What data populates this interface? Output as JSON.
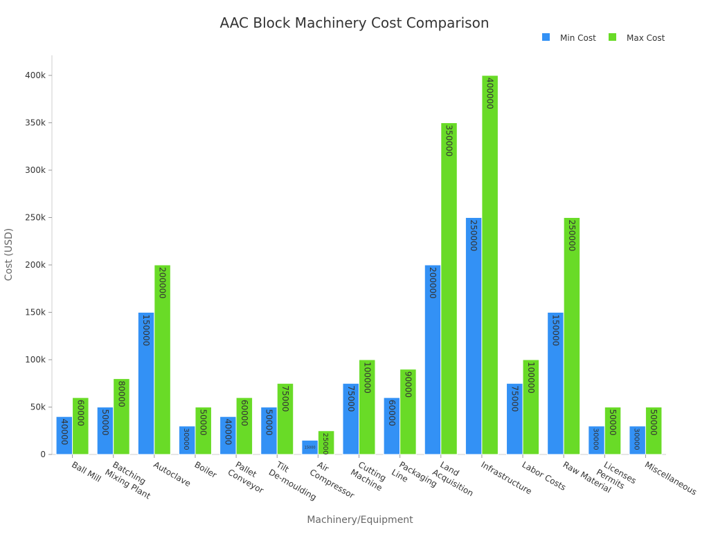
{
  "chart_data": {
    "type": "bar",
    "title": "AAC Block Machinery Cost Comparison",
    "xlabel": "Machinery/Equipment",
    "ylabel": "Cost (USD)",
    "ylim": [
      0,
      400000
    ],
    "yticks": [
      0,
      50000,
      100000,
      150000,
      200000,
      250000,
      300000,
      350000,
      400000
    ],
    "ytick_labels": [
      "0",
      "50k",
      "100k",
      "150k",
      "200k",
      "250k",
      "300k",
      "350k",
      "400k"
    ],
    "grid": false,
    "legend_position": "top-right",
    "categories": [
      "Ball Mill",
      "Batching\nMixing Plant",
      "Autoclave",
      "Boiler",
      "Pallet\nConveyor",
      "Tilt\nDe-moulding",
      "Air\nCompressor",
      "Cutting\nMachine",
      "Packaging\nLine",
      "Land\nAcquisition",
      "Infrastructure",
      "Labor Costs",
      "Raw Material",
      "Licenses\nPermits",
      "Miscellaneous"
    ],
    "series": [
      {
        "name": "Min Cost",
        "color": "#3391f5",
        "values": [
          40000,
          50000,
          150000,
          30000,
          40000,
          50000,
          15000,
          75000,
          60000,
          200000,
          250000,
          75000,
          150000,
          30000,
          30000
        ]
      },
      {
        "name": "Max Cost",
        "color": "#69db27",
        "values": [
          60000,
          80000,
          200000,
          50000,
          60000,
          75000,
          25000,
          100000,
          90000,
          350000,
          400000,
          100000,
          250000,
          50000,
          50000
        ]
      }
    ]
  }
}
